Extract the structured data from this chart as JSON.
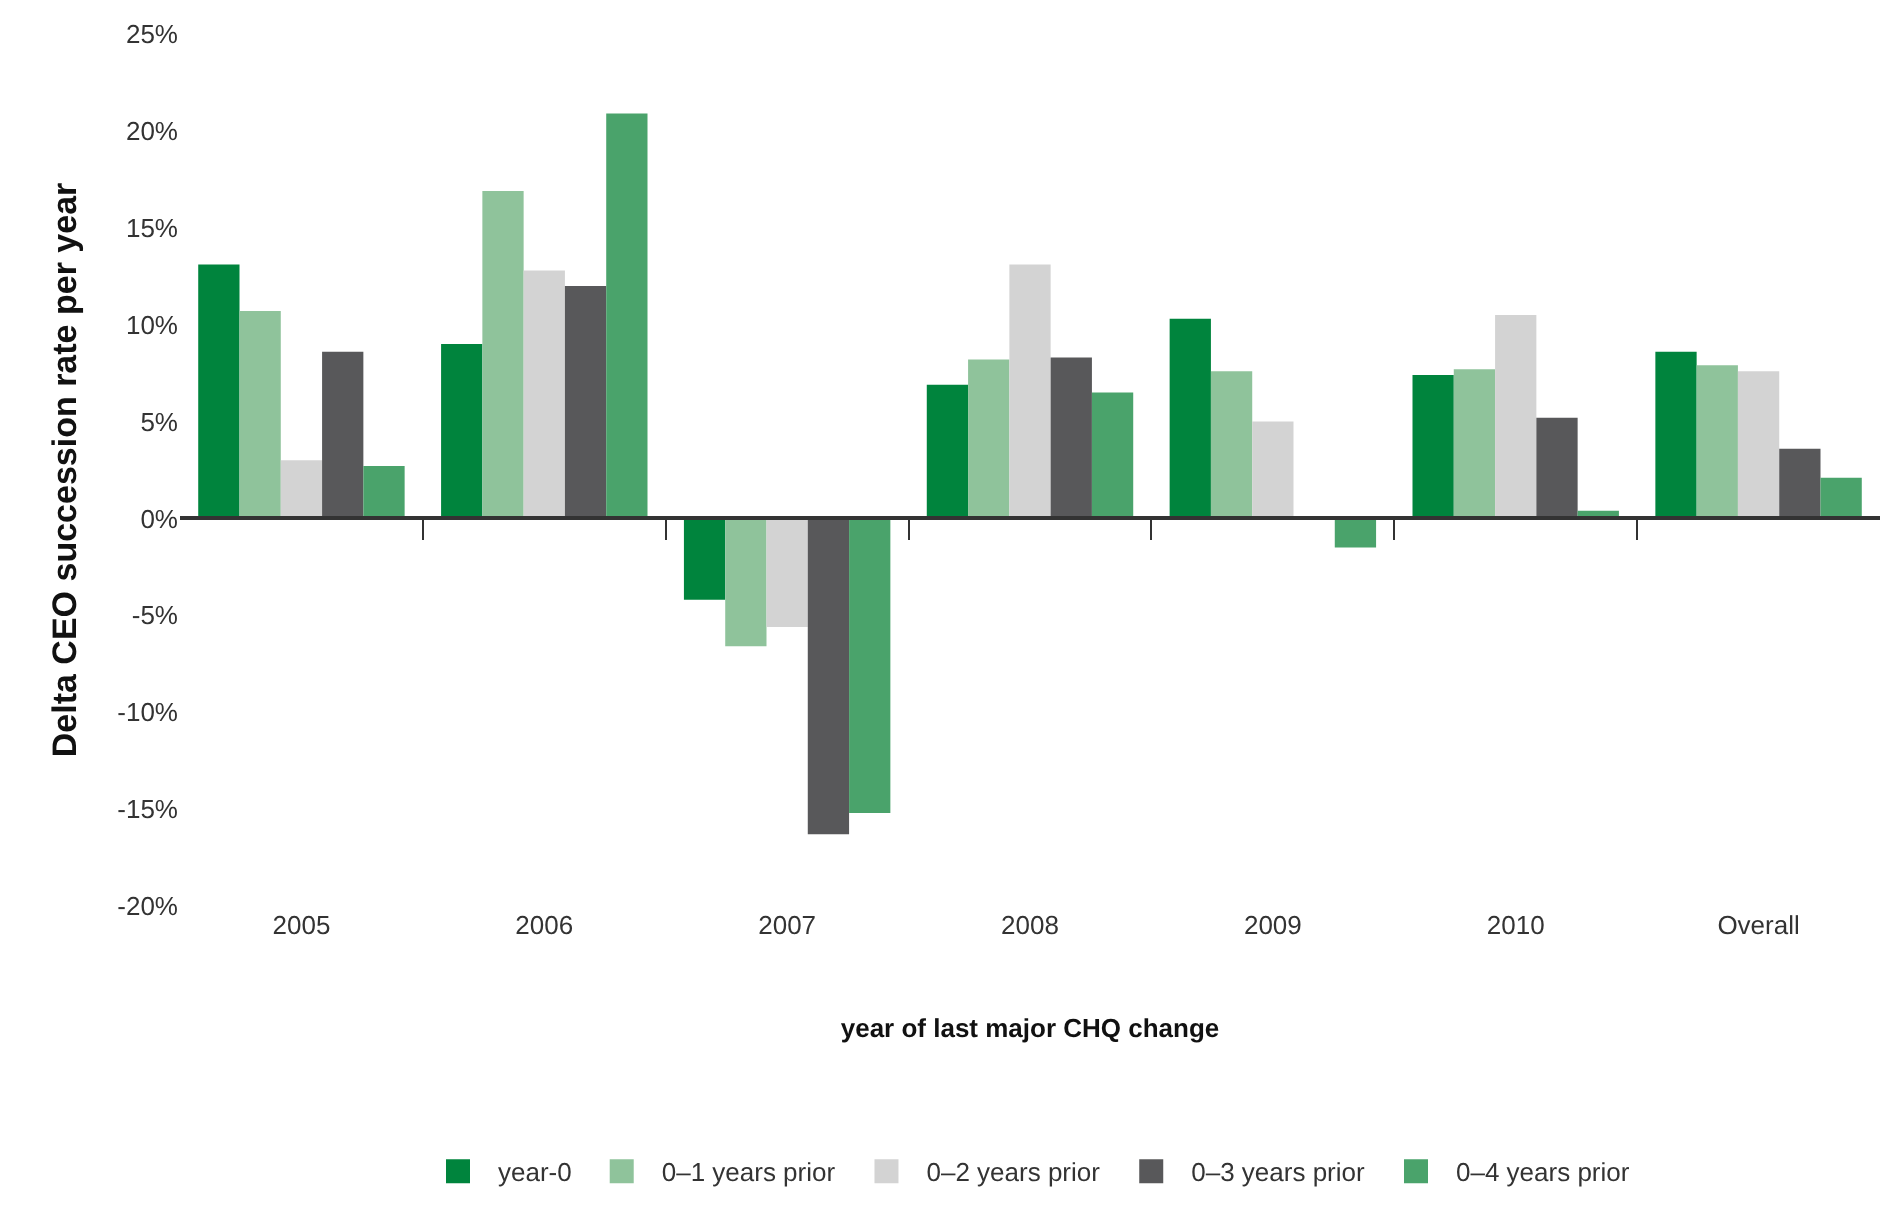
{
  "chart_data": {
    "type": "bar",
    "xlabel": "year of last major CHQ change",
    "ylabel": "Delta CEO succession rate per year",
    "categories": [
      "2005",
      "2006",
      "2007",
      "2008",
      "2009",
      "2010",
      "Overall"
    ],
    "series": [
      {
        "name": "year-0",
        "color": "#00843d",
        "values": [
          13.1,
          9.0,
          -4.2,
          6.9,
          10.3,
          7.4,
          8.6
        ]
      },
      {
        "name": "0–1 years prior",
        "color": "#8fc39b",
        "values": [
          10.7,
          16.9,
          -6.6,
          8.2,
          7.6,
          7.7,
          7.9
        ]
      },
      {
        "name": "0–2 years prior",
        "color": "#d3d3d3",
        "values": [
          3.0,
          12.8,
          -5.6,
          13.1,
          5.0,
          10.5,
          7.6
        ]
      },
      {
        "name": "0–3 years prior",
        "color": "#58585a",
        "values": [
          8.6,
          12.0,
          -16.3,
          8.3,
          0,
          5.2,
          3.6
        ]
      },
      {
        "name": "0–4 years prior",
        "color": "#4aa36b",
        "values": [
          2.7,
          20.9,
          -15.2,
          6.5,
          -1.5,
          0.4,
          2.1
        ]
      }
    ],
    "ylim": [
      -20,
      25
    ],
    "yticks": [
      {
        "value": -20,
        "label": "-20%"
      },
      {
        "value": -15,
        "label": "-15%"
      },
      {
        "value": -10,
        "label": "-10%"
      },
      {
        "value": -5,
        "label": "-5%"
      },
      {
        "value": 0,
        "label": "0%"
      },
      {
        "value": 5,
        "label": "5%"
      },
      {
        "value": 10,
        "label": "10%"
      },
      {
        "value": 15,
        "label": "15%"
      },
      {
        "value": 20,
        "label": "20%"
      },
      {
        "value": 25,
        "label": "25%"
      }
    ],
    "legend": "bottom"
  }
}
